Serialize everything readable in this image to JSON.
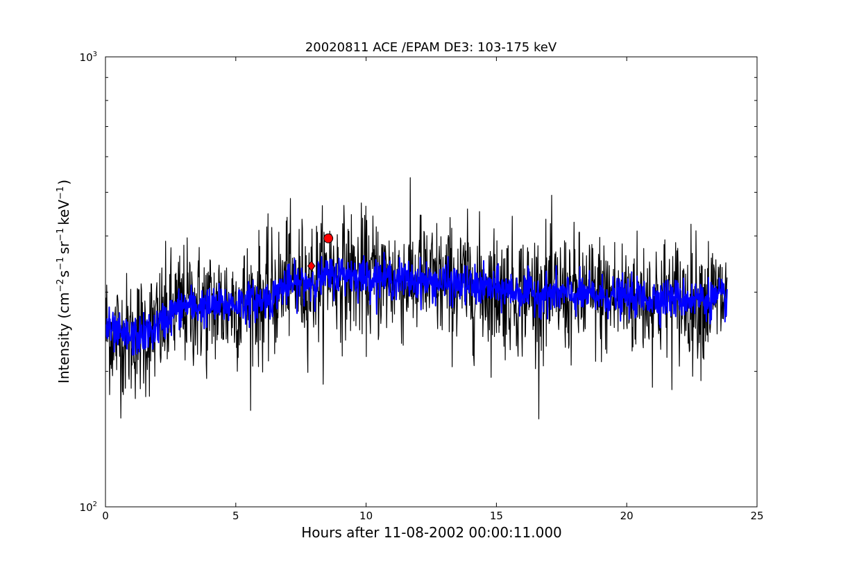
{
  "chart_data": {
    "type": "line",
    "title": "20020811 ACE /EPAM DE3: 103-175 keV",
    "xlabel": "Hours after 11-08-2002 00:00:11.000",
    "ylabel_parts": {
      "base": "Intensity (cm",
      "exp1": "−2",
      "mid1": "s",
      "exp2": "−1",
      "mid2": "sr",
      "exp3": "−1",
      "mid3": "keV",
      "exp4": "−1",
      "tail": ")"
    },
    "xlim": [
      0,
      25
    ],
    "ylim": [
      100,
      1000
    ],
    "yscale": "log",
    "grid": false,
    "x_ticks": [
      0,
      5,
      10,
      15,
      20,
      25
    ],
    "y_major_ticks": [
      {
        "value": 100,
        "base": "10",
        "exp": "2"
      },
      {
        "value": 1000,
        "base": "10",
        "exp": "3"
      }
    ],
    "y_minor_ticks": [
      200,
      300,
      400,
      500,
      600,
      700,
      800,
      900
    ],
    "series": [
      {
        "kind": "raw",
        "color": "#000000",
        "x_start": 0.0,
        "x_end": 23.85,
        "n_points": 1500,
        "trend": [
          [
            0.0,
            250
          ],
          [
            0.5,
            240
          ],
          [
            1.0,
            238
          ],
          [
            1.5,
            242
          ],
          [
            2.0,
            250
          ],
          [
            2.5,
            268
          ],
          [
            3.0,
            280
          ],
          [
            4.0,
            278
          ],
          [
            5.0,
            283
          ],
          [
            6.0,
            288
          ],
          [
            6.5,
            292
          ],
          [
            6.6,
            305
          ],
          [
            7.0,
            310
          ],
          [
            8.0,
            318
          ],
          [
            9.0,
            330
          ],
          [
            10.0,
            325
          ],
          [
            12.0,
            318
          ],
          [
            14.0,
            310
          ],
          [
            16.0,
            300
          ],
          [
            18.0,
            295
          ],
          [
            20.0,
            292
          ],
          [
            22.0,
            290
          ],
          [
            23.85,
            290
          ]
        ],
        "noise_fraction": 0.16,
        "spikes": [
          [
            0.32,
            212
          ],
          [
            3.86,
            208
          ],
          [
            6.97,
            440
          ],
          [
            12.07,
            445
          ],
          [
            8.6,
            410
          ]
        ]
      },
      {
        "kind": "smoothed",
        "color": "#0000ff",
        "x_start": 0.0,
        "x_end": 23.85,
        "n_points": 1500,
        "noise_fraction": 0.05
      }
    ],
    "markers": [
      {
        "shape": "diamond",
        "x": 7.9,
        "y": 343,
        "color": "#ff0000"
      },
      {
        "shape": "circle",
        "x": 8.55,
        "y": 395,
        "color": "#ff0000"
      }
    ]
  }
}
